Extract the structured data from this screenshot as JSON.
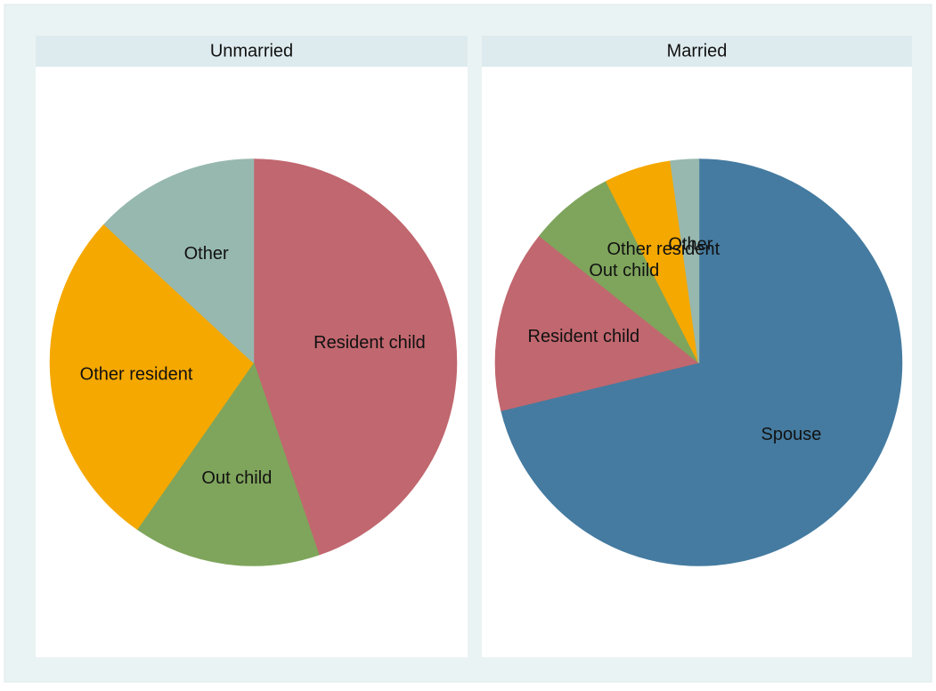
{
  "chart_data": [
    {
      "type": "pie",
      "title": "Unmarried",
      "categories": [
        "Resident child",
        "Out child",
        "Other resident",
        "Other"
      ],
      "values": [
        44.8,
        14.9,
        27.2,
        13.1
      ],
      "colors": [
        "#c1676f",
        "#7fa55c",
        "#f5a800",
        "#97b8af"
      ]
    },
    {
      "type": "pie",
      "title": "Married",
      "categories": [
        "Spouse",
        "Resident child",
        "Out child",
        "Other resident",
        "Other"
      ],
      "values": [
        71.2,
        14.5,
        6.8,
        5.3,
        2.2
      ],
      "colors": [
        "#457ba0",
        "#c1676f",
        "#7fa55c",
        "#f5a800",
        "#97b8af"
      ]
    }
  ]
}
